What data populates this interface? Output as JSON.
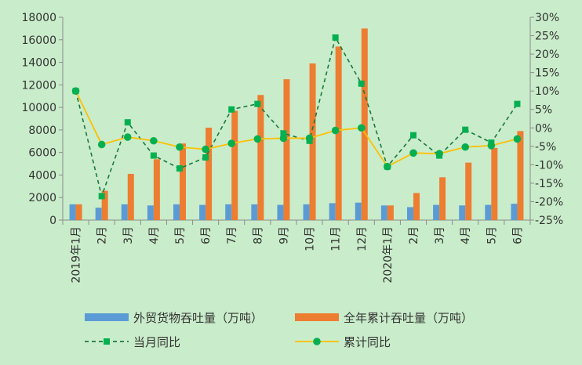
{
  "chart_data": {
    "type": "bar",
    "categories": [
      "2019年1月",
      "2月",
      "3月",
      "4月",
      "5月",
      "6月",
      "7月",
      "8月",
      "9月",
      "10月",
      "11月",
      "12月",
      "2020年1月",
      "2月",
      "3月",
      "4月",
      "5月",
      "6月"
    ],
    "series": [
      {
        "name": "外贸货物吞吐量（万吨）",
        "type": "bar",
        "axis": "left",
        "color": "#5b9bd5",
        "values": [
          1400,
          1100,
          1400,
          1300,
          1400,
          1350,
          1400,
          1400,
          1350,
          1400,
          1500,
          1550,
          1300,
          1150,
          1350,
          1300,
          1350,
          1450
        ]
      },
      {
        "name": "全年累计吞吐量（万吨）",
        "type": "bar",
        "axis": "left",
        "color": "#ed7d31",
        "values": [
          1400,
          2600,
          4100,
          5400,
          6800,
          8200,
          9700,
          11100,
          12500,
          13900,
          15400,
          17000,
          1300,
          2400,
          3800,
          5100,
          6400,
          7900
        ]
      },
      {
        "name": "当月同比",
        "type": "line",
        "axis": "right",
        "color": "#1a7a3c",
        "dashed": true,
        "marker": "square",
        "marker_color": "#00b050",
        "values": [
          10,
          -18.5,
          1.5,
          -7.5,
          -11,
          -8,
          5,
          6.5,
          -1.5,
          -3.5,
          24.5,
          12,
          -10.5,
          -2,
          -7.5,
          -0.5,
          -4,
          6.5
        ]
      },
      {
        "name": "累计同比",
        "type": "line",
        "axis": "right",
        "color": "#ffc000",
        "dashed": false,
        "marker": "circle",
        "marker_color": "#00b050",
        "values": [
          10,
          -4.5,
          -2.5,
          -3.5,
          -5.2,
          -5.8,
          -4.2,
          -3,
          -2.8,
          -2.8,
          -0.7,
          0,
          -10.5,
          -6.8,
          -7,
          -5.2,
          -4.8,
          -3
        ]
      }
    ],
    "y_left": {
      "min": 0,
      "max": 18000,
      "step": 2000,
      "ticks": [
        "0",
        "2000",
        "4000",
        "6000",
        "8000",
        "10000",
        "12000",
        "14000",
        "16000",
        "18000"
      ]
    },
    "y_right": {
      "min": -25,
      "max": 30,
      "step": 5,
      "ticks": [
        "-25%",
        "-20%",
        "-15%",
        "-10%",
        "-5%",
        "0%",
        "5%",
        "10%",
        "15%",
        "20%",
        "25%",
        "30%"
      ]
    },
    "grid": false,
    "legend_position": "bottom"
  }
}
